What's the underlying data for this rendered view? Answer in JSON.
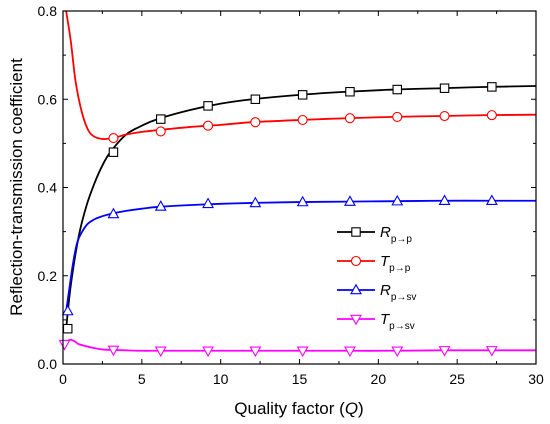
{
  "chart_data": {
    "type": "line",
    "title": "",
    "xlabel": "Quality factor",
    "xlabel_symbol": "Q",
    "ylabel": "Reflection-transmission coefficient",
    "xlim": [
      0,
      30
    ],
    "ylim": [
      0,
      0.8
    ],
    "xticks": [
      0,
      5,
      10,
      15,
      20,
      25,
      30
    ],
    "yticks": [
      0.0,
      0.2,
      0.4,
      0.6,
      0.8
    ],
    "xtick_labels": [
      "0",
      "5",
      "10",
      "15",
      "20",
      "25",
      "30"
    ],
    "ytick_labels": [
      "0.0",
      "0.2",
      "0.4",
      "0.6",
      "0.8"
    ],
    "grid": false,
    "legend_position": "center-right",
    "series": [
      {
        "name": "R p→p",
        "label_main": "R",
        "label_sub": "p→p",
        "color": "#000000",
        "marker": "square",
        "x": [
          0.2,
          0.5,
          1,
          1.5,
          2,
          2.5,
          3,
          4,
          5,
          6,
          8,
          10,
          12,
          15,
          18,
          21,
          24,
          27,
          30
        ],
        "y": [
          0.08,
          0.18,
          0.29,
          0.36,
          0.41,
          0.45,
          0.48,
          0.52,
          0.54,
          0.555,
          0.575,
          0.59,
          0.6,
          0.61,
          0.617,
          0.622,
          0.625,
          0.628,
          0.63
        ],
        "marker_x": [
          0.3,
          3.2,
          6.2,
          9.2,
          12.2,
          15.2,
          18.2,
          21.2,
          24.2,
          27.2
        ],
        "marker_y": [
          0.08,
          0.48,
          0.555,
          0.585,
          0.6,
          0.61,
          0.617,
          0.622,
          0.625,
          0.628
        ]
      },
      {
        "name": "T p→p",
        "label_main": "T",
        "label_sub": "p→p",
        "color": "#ff0000",
        "marker": "circle",
        "x": [
          0.2,
          0.5,
          0.8,
          1.2,
          1.6,
          2,
          2.5,
          3,
          3.5,
          4,
          5,
          6,
          8,
          10,
          12,
          15,
          18,
          21,
          24,
          27,
          30
        ],
        "y": [
          0.8,
          0.73,
          0.64,
          0.57,
          0.53,
          0.515,
          0.51,
          0.511,
          0.515,
          0.52,
          0.526,
          0.53,
          0.537,
          0.542,
          0.548,
          0.553,
          0.557,
          0.56,
          0.562,
          0.564,
          0.565
        ],
        "marker_x": [
          3.2,
          6.2,
          9.2,
          12.2,
          15.2,
          18.2,
          21.2,
          24.2,
          27.2
        ],
        "marker_y": [
          0.512,
          0.527,
          0.54,
          0.548,
          0.553,
          0.557,
          0.56,
          0.562,
          0.564
        ]
      },
      {
        "name": "R p→sv",
        "label_main": "R",
        "label_sub": "p→sv",
        "color": "#0000ff",
        "marker": "triangle-up",
        "x": [
          0.2,
          0.4,
          0.6,
          0.8,
          1,
          1.5,
          2,
          2.5,
          3,
          4,
          5,
          6,
          8,
          10,
          12,
          15,
          18,
          21,
          24,
          27,
          30
        ],
        "y": [
          0.12,
          0.17,
          0.22,
          0.26,
          0.285,
          0.315,
          0.328,
          0.335,
          0.34,
          0.347,
          0.352,
          0.356,
          0.36,
          0.363,
          0.365,
          0.367,
          0.368,
          0.369,
          0.37,
          0.37,
          0.37
        ],
        "marker_x": [
          0.3,
          3.2,
          6.2,
          9.2,
          12.2,
          15.2,
          18.2,
          21.2,
          24.2,
          27.2
        ],
        "marker_y": [
          0.12,
          0.34,
          0.357,
          0.363,
          0.365,
          0.367,
          0.368,
          0.369,
          0.37,
          0.37
        ]
      },
      {
        "name": "T p→sv",
        "label_main": "T",
        "label_sub": "p→sv",
        "color": "#ff00ff",
        "marker": "triangle-down",
        "x": [
          0.1,
          0.3,
          0.5,
          0.8,
          1,
          1.5,
          2,
          2.5,
          3,
          4,
          5,
          6,
          8,
          10,
          12,
          15,
          18,
          21,
          24,
          27,
          30
        ],
        "y": [
          0.045,
          0.052,
          0.055,
          0.05,
          0.045,
          0.04,
          0.036,
          0.033,
          0.032,
          0.031,
          0.03,
          0.03,
          0.03,
          0.03,
          0.03,
          0.03,
          0.03,
          0.03,
          0.031,
          0.031,
          0.031
        ],
        "marker_x": [
          0.1,
          3.2,
          6.2,
          9.2,
          12.2,
          15.2,
          18.2,
          21.2,
          24.2,
          27.2
        ],
        "marker_y": [
          0.045,
          0.032,
          0.03,
          0.03,
          0.03,
          0.03,
          0.03,
          0.03,
          0.031,
          0.031
        ]
      }
    ]
  }
}
